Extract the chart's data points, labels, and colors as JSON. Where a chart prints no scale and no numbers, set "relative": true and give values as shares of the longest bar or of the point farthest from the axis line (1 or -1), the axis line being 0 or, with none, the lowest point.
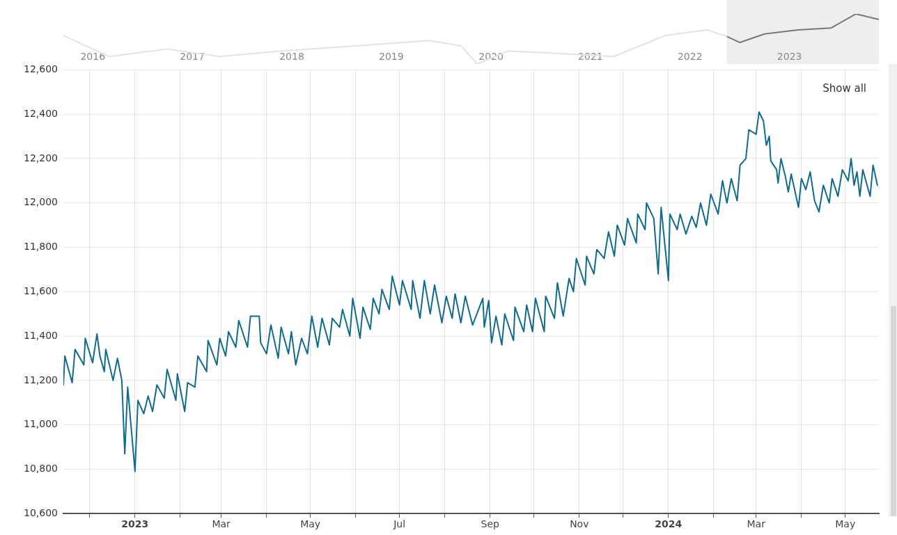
{
  "chart_data": [
    {
      "type": "line",
      "relative": true,
      "xlim": [
        "2016-03-15",
        "2024-05-24"
      ],
      "xticks": [
        {
          "value": "2016-07-01",
          "label": "2016"
        },
        {
          "value": "2017-07-01",
          "label": "2017"
        },
        {
          "value": "2018-07-01",
          "label": "2018"
        },
        {
          "value": "2019-07-01",
          "label": "2019"
        },
        {
          "value": "2020-07-01",
          "label": "2020"
        },
        {
          "value": "2021-07-01",
          "label": "2021"
        },
        {
          "value": "2022-07-01",
          "label": "2022"
        },
        {
          "value": "2023-07-01",
          "label": "2023"
        }
      ],
      "tick_labels": "x",
      "grid": false,
      "legend": false,
      "marker": "none",
      "bands": [
        {
          "axis": "x",
          "from": "2022-11-13",
          "to": "2024-05-24",
          "color": "#eeeeee"
        }
      ],
      "series": [
        {
          "color": "#e3e3e3",
          "x": [
            "2016-03-15",
            "2016-08-29",
            "2017-04-01",
            "2017-10-08",
            "2018-05-27",
            "2019-02-20",
            "2019-11-16",
            "2020-03-14",
            "2020-05-11",
            "2020-09-02",
            "2021-03-14",
            "2021-09-24",
            "2022-04-02",
            "2022-09-02",
            "2022-11-13"
          ],
          "values": [
            0.57,
            0.15,
            0.3,
            0.15,
            0.26,
            0.36,
            0.47,
            0.36,
            0,
            0.26,
            0.21,
            0.15,
            0.57,
            0.68,
            0.55
          ]
        },
        {
          "color": "#777777",
          "x": [
            "2022-11-13",
            "2022-12-31",
            "2023-04-01",
            "2023-08-01",
            "2023-12-01",
            "2024-03-01",
            "2024-05-24"
          ],
          "values": [
            0.55,
            0.43,
            0.6,
            0.68,
            0.72,
            1,
            0.89
          ]
        }
      ]
    },
    {
      "type": "line",
      "xlim": [
        "2022-11-13",
        "2024-05-24"
      ],
      "ylim": [
        10600,
        12600
      ],
      "yticks": [
        {
          "value": 10600,
          "label": "10,600"
        },
        {
          "value": 10800,
          "label": "10,800"
        },
        {
          "value": 11000,
          "label": "11,000"
        },
        {
          "value": 11200,
          "label": "11,200"
        },
        {
          "value": 11400,
          "label": "11,400"
        },
        {
          "value": 11600,
          "label": "11,600"
        },
        {
          "value": 11800,
          "label": "11,800"
        },
        {
          "value": 12000,
          "label": "12,000"
        },
        {
          "value": 12200,
          "label": "12,200"
        },
        {
          "value": 12400,
          "label": "12,400"
        },
        {
          "value": 12600,
          "label": "12,600"
        }
      ],
      "xticks": [
        {
          "value": "2022-12-01",
          "label": null
        },
        {
          "value": "2023-01-01",
          "label": "2023"
        },
        {
          "value": "2023-02-01",
          "label": null
        },
        {
          "value": "2023-03-01",
          "label": "Mar"
        },
        {
          "value": "2023-04-01",
          "label": null
        },
        {
          "value": "2023-05-01",
          "label": "May"
        },
        {
          "value": "2023-06-01",
          "label": null
        },
        {
          "value": "2023-07-01",
          "label": "Jul"
        },
        {
          "value": "2023-08-01",
          "label": null
        },
        {
          "value": "2023-09-01",
          "label": "Sep"
        },
        {
          "value": "2023-10-01",
          "label": null
        },
        {
          "value": "2023-11-01",
          "label": "Nov"
        },
        {
          "value": "2023-12-01",
          "label": null
        },
        {
          "value": "2024-01-01",
          "label": "2024"
        },
        {
          "value": "2024-02-01",
          "label": null
        },
        {
          "value": "2024-03-01",
          "label": "Mar"
        },
        {
          "value": "2024-04-01",
          "label": null
        },
        {
          "value": "2024-05-01",
          "label": "May"
        }
      ],
      "grid": true,
      "legend": false,
      "marker": "none",
      "annotations": [
        "Show all"
      ],
      "x": [
        "2022-11-13",
        "2022-11-14",
        "2022-11-19",
        "2022-11-21",
        "2022-11-27",
        "2022-11-28",
        "2022-12-03",
        "2022-12-06",
        "2022-12-08",
        "2022-12-11",
        "2022-12-12",
        "2022-12-17",
        "2022-12-20",
        "2022-12-23",
        "2022-12-25",
        "2022-12-27",
        "2023-01-01",
        "2023-01-03",
        "2023-01-07",
        "2023-01-10",
        "2023-01-13",
        "2023-01-16",
        "2023-01-21",
        "2023-01-23",
        "2023-01-29",
        "2023-01-30",
        "2023-02-04",
        "2023-02-06",
        "2023-02-11",
        "2023-02-13",
        "2023-02-19",
        "2023-02-20",
        "2023-02-26",
        "2023-02-28",
        "2023-03-04",
        "2023-03-06",
        "2023-03-11",
        "2023-03-13",
        "2023-03-19",
        "2023-03-21",
        "2023-03-27",
        "2023-03-28",
        "2023-04-01",
        "2023-04-04",
        "2023-04-09",
        "2023-04-11",
        "2023-04-16",
        "2023-04-18",
        "2023-04-21",
        "2023-04-25",
        "2023-04-29",
        "2023-05-02",
        "2023-05-06",
        "2023-05-09",
        "2023-05-14",
        "2023-05-16",
        "2023-05-21",
        "2023-05-23",
        "2023-05-28",
        "2023-05-30",
        "2023-06-04",
        "2023-06-06",
        "2023-06-11",
        "2023-06-13",
        "2023-06-17",
        "2023-06-19",
        "2023-06-24",
        "2023-06-26",
        "2023-07-01",
        "2023-07-03",
        "2023-07-09",
        "2023-07-10",
        "2023-07-15",
        "2023-07-18",
        "2023-07-22",
        "2023-07-25",
        "2023-07-30",
        "2023-08-02",
        "2023-08-06",
        "2023-08-08",
        "2023-08-12",
        "2023-08-15",
        "2023-08-20",
        "2023-08-27",
        "2023-08-28",
        "2023-08-31",
        "2023-09-02",
        "2023-09-05",
        "2023-09-09",
        "2023-09-11",
        "2023-09-17",
        "2023-09-18",
        "2023-09-24",
        "2023-09-26",
        "2023-09-30",
        "2023-10-02",
        "2023-10-08",
        "2023-10-09",
        "2023-10-15",
        "2023-10-17",
        "2023-10-21",
        "2023-10-25",
        "2023-10-28",
        "2023-10-30",
        "2023-11-05",
        "2023-11-06",
        "2023-11-11",
        "2023-11-13",
        "2023-11-18",
        "2023-11-21",
        "2023-11-25",
        "2023-11-27",
        "2023-12-02",
        "2023-12-04",
        "2023-12-10",
        "2023-12-11",
        "2023-12-16",
        "2023-12-17",
        "2023-12-22",
        "2023-12-25",
        "2023-12-27",
        "2024-01-01",
        "2024-01-02",
        "2024-01-07",
        "2024-01-09",
        "2024-01-13",
        "2024-01-17",
        "2024-01-20",
        "2024-01-23",
        "2024-01-27",
        "2024-01-30",
        "2024-02-04",
        "2024-02-07",
        "2024-02-10",
        "2024-02-13",
        "2024-02-17",
        "2024-02-19",
        "2024-02-23",
        "2024-02-25",
        "2024-03-01",
        "2024-03-03",
        "2024-03-06",
        "2024-03-08",
        "2024-03-10",
        "2024-03-11",
        "2024-03-15",
        "2024-03-16",
        "2024-03-18",
        "2024-03-21",
        "2024-03-23",
        "2024-03-25",
        "2024-03-30",
        "2024-04-01",
        "2024-04-04",
        "2024-04-07",
        "2024-04-10",
        "2024-04-13",
        "2024-04-16",
        "2024-04-20",
        "2024-04-22",
        "2024-04-26",
        "2024-04-29",
        "2024-05-03",
        "2024-05-05",
        "2024-05-07",
        "2024-05-09",
        "2024-05-11",
        "2024-05-13",
        "2024-05-18",
        "2024-05-20",
        "2024-05-23"
      ],
      "series": [
        {
          "color": "#0f6a8f",
          "values": [
            11180,
            11310,
            11190,
            11340,
            11270,
            11390,
            11280,
            11410,
            11310,
            11240,
            11340,
            11200,
            11300,
            11200,
            10870,
            11170,
            10790,
            11110,
            11050,
            11130,
            11060,
            11180,
            11120,
            11250,
            11110,
            11230,
            11060,
            11190,
            11170,
            11310,
            11240,
            11380,
            11270,
            11390,
            11310,
            11420,
            11350,
            11470,
            11350,
            11490,
            11490,
            11370,
            11320,
            11450,
            11300,
            11440,
            11320,
            11420,
            11270,
            11390,
            11320,
            11490,
            11350,
            11480,
            11360,
            11480,
            11440,
            11520,
            11400,
            11570,
            11390,
            11530,
            11430,
            11570,
            11500,
            11610,
            11520,
            11670,
            11540,
            11650,
            11520,
            11650,
            11480,
            11650,
            11500,
            11630,
            11460,
            11580,
            11480,
            11590,
            11460,
            11580,
            11450,
            11570,
            11440,
            11560,
            11370,
            11490,
            11360,
            11500,
            11380,
            11530,
            11420,
            11540,
            11420,
            11570,
            11420,
            11580,
            11480,
            11640,
            11490,
            11660,
            11600,
            11750,
            11630,
            11760,
            11680,
            11790,
            11750,
            11870,
            11760,
            11900,
            11810,
            11930,
            11820,
            11950,
            11880,
            12000,
            11930,
            11680,
            11980,
            11650,
            11950,
            11880,
            11950,
            11860,
            11940,
            11890,
            12000,
            11900,
            12040,
            11950,
            12100,
            12000,
            12110,
            12010,
            12170,
            12200,
            12330,
            12310,
            12410,
            12370,
            12260,
            12300,
            12190,
            12150,
            12090,
            12200,
            12120,
            12050,
            12130,
            11980,
            12110,
            12060,
            12140,
            12010,
            11960,
            12080,
            12000,
            12110,
            12030,
            12150,
            12100,
            12200,
            12080,
            12140,
            12030,
            12150,
            12030,
            12170,
            12080
          ]
        }
      ]
    }
  ]
}
